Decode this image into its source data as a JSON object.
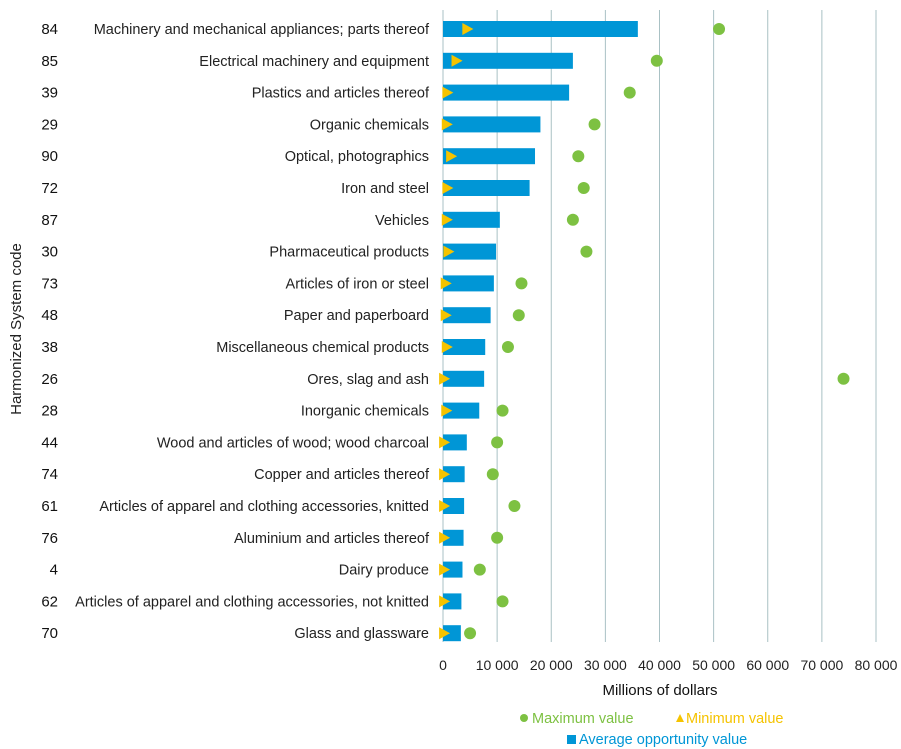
{
  "chart_data": {
    "type": "bar",
    "ylabel": "Harmonized System code",
    "xlabel": "Millions of dollars",
    "xlim": [
      0,
      80000
    ],
    "xticks": [
      0,
      10000,
      20000,
      30000,
      40000,
      50000,
      60000,
      70000,
      80000
    ],
    "xtick_labels": [
      "0",
      "10 000",
      "20 000",
      "30 000",
      "40 000",
      "50 000",
      "60 000",
      "70 000",
      "80 000"
    ],
    "grid": "vertical",
    "legend_position": "bottom",
    "colors": {
      "average": "#0096d6",
      "minimum": "#f5c300",
      "maximum": "#7dc142",
      "grid": "#a9c1c4"
    },
    "legend": {
      "maximum": "Maximum value",
      "minimum": "Minimum value",
      "average": "Average opportunity value"
    },
    "categories": [
      {
        "code": "84",
        "label": "Machinery and mechanical appliances; parts thereof",
        "average": 36000,
        "minimum": 4500,
        "maximum": 51000
      },
      {
        "code": "85",
        "label": "Electrical machinery and equipment",
        "average": 24000,
        "minimum": 2500,
        "maximum": 39500
      },
      {
        "code": "39",
        "label": "Plastics and articles thereof",
        "average": 23300,
        "minimum": 800,
        "maximum": 34500
      },
      {
        "code": "29",
        "label": "Organic chemicals",
        "average": 18000,
        "minimum": 700,
        "maximum": 28000
      },
      {
        "code": "90",
        "label": "Optical, photographics",
        "average": 17000,
        "minimum": 1500,
        "maximum": 25000
      },
      {
        "code": "72",
        "label": "Iron and steel",
        "average": 16000,
        "minimum": 800,
        "maximum": 26000
      },
      {
        "code": "87",
        "label": "Vehicles",
        "average": 10500,
        "minimum": 700,
        "maximum": 24000
      },
      {
        "code": "30",
        "label": "Pharmaceutical products",
        "average": 9800,
        "minimum": 1000,
        "maximum": 26500
      },
      {
        "code": "73",
        "label": "Articles of iron or steel",
        "average": 9400,
        "minimum": 500,
        "maximum": 14500
      },
      {
        "code": "48",
        "label": "Paper and paperboard",
        "average": 8800,
        "minimum": 500,
        "maximum": 14000
      },
      {
        "code": "38",
        "label": "Miscellaneous chemical products",
        "average": 7800,
        "minimum": 700,
        "maximum": 12000
      },
      {
        "code": "26",
        "label": "Ores, slag and ash",
        "average": 7600,
        "minimum": 200,
        "maximum": 74000
      },
      {
        "code": "28",
        "label": "Inorganic chemicals",
        "average": 6700,
        "minimum": 600,
        "maximum": 11000
      },
      {
        "code": "44",
        "label": "Wood and articles of wood; wood charcoal",
        "average": 4400,
        "minimum": 200,
        "maximum": 10000
      },
      {
        "code": "74",
        "label": "Copper and articles thereof",
        "average": 4000,
        "minimum": 200,
        "maximum": 9200
      },
      {
        "code": "61",
        "label": "Articles of apparel and clothing accessories, knitted",
        "average": 3900,
        "minimum": 200,
        "maximum": 13200
      },
      {
        "code": "76",
        "label": "Aluminium and articles thereof",
        "average": 3800,
        "minimum": 200,
        "maximum": 10000
      },
      {
        "code": "4",
        "label": "Dairy produce",
        "average": 3600,
        "minimum": 200,
        "maximum": 6800
      },
      {
        "code": "62",
        "label": "Articles of apparel and clothing accessories, not knitted",
        "average": 3400,
        "minimum": 200,
        "maximum": 11000
      },
      {
        "code": "70",
        "label": "Glass and glassware",
        "average": 3300,
        "minimum": 200,
        "maximum": 5000
      }
    ]
  }
}
